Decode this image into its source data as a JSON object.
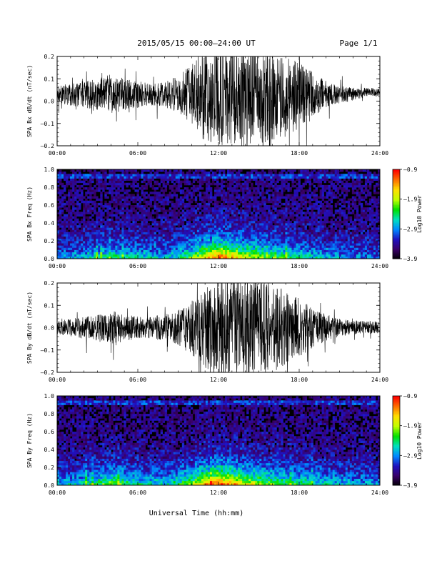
{
  "header": {
    "title": "2015/05/15  00:00–24:00 UT",
    "page": "Page 1/1"
  },
  "footer": {
    "xlabel": "Universal Time (hh:mm)"
  },
  "colors": {
    "trace": "#000000",
    "background": "#ffffff",
    "colormap": [
      "#000000",
      "#3a0068",
      "#2010c0",
      "#0088ff",
      "#00e0c0",
      "#00e000",
      "#c0ff00",
      "#ffe000",
      "#ff7000",
      "#ff0000"
    ]
  },
  "chart_data": [
    {
      "type": "line",
      "ylabel": "SPA Bx dB/dt (nT/sec)",
      "ylim": [
        -0.2,
        0.2
      ],
      "yticks": [
        "0.2",
        "0.1",
        "0.0",
        "–0.1",
        "–0.2"
      ],
      "xticks": [
        "00:00",
        "06:00",
        "12:00",
        "18:00",
        "24:00"
      ],
      "xlim_hours": [
        0,
        24
      ],
      "series": [
        {
          "hours": [
            0,
            1,
            2,
            3,
            4,
            5,
            6,
            7,
            8,
            9,
            10,
            11,
            12,
            13,
            14,
            15,
            16,
            17,
            18,
            19,
            20,
            21,
            22,
            23,
            24
          ],
          "offset": [
            0.03,
            0.03,
            0.03,
            0.03,
            0.03,
            0.03,
            0.03,
            0.03,
            0.03,
            0.03,
            0.03,
            0.02,
            0.02,
            0.02,
            0.02,
            0.02,
            0.02,
            0.02,
            0.03,
            0.03,
            0.03,
            0.03,
            0.03,
            0.04,
            0.04
          ],
          "amplitude": [
            0.04,
            0.05,
            0.06,
            0.07,
            0.09,
            0.07,
            0.06,
            0.05,
            0.06,
            0.08,
            0.14,
            0.2,
            0.22,
            0.22,
            0.22,
            0.21,
            0.2,
            0.18,
            0.15,
            0.1,
            0.06,
            0.04,
            0.03,
            0.02,
            0.02
          ]
        }
      ]
    },
    {
      "type": "heatmap",
      "ylabel": "SPA Bx Freq (Hz)",
      "ylim": [
        0.0,
        1.0
      ],
      "yticks": [
        "1.0",
        "0.8",
        "0.6",
        "0.4",
        "0.2",
        "0.0"
      ],
      "xticks": [
        "00:00",
        "06:00",
        "12:00",
        "18:00",
        "24:00"
      ],
      "xlim_hours": [
        0,
        24
      ],
      "colorbar": {
        "label": "Log10 Power",
        "range": [
          -3.9,
          -0.9
        ],
        "ticks": [
          "–0.9",
          "–1.9",
          "–2.9",
          "–3.9"
        ]
      },
      "activity_hours": [
        0,
        2,
        4,
        6,
        8,
        10,
        11,
        12,
        13,
        14,
        16,
        18,
        20,
        22,
        24
      ],
      "activity_level": [
        0.25,
        0.3,
        0.45,
        0.35,
        0.3,
        0.5,
        0.75,
        0.9,
        0.8,
        0.65,
        0.5,
        0.4,
        0.3,
        0.25,
        0.2
      ]
    },
    {
      "type": "line",
      "ylabel": "SPA By dB/dt (nT/sec)",
      "ylim": [
        -0.2,
        0.2
      ],
      "yticks": [
        "0.2",
        "0.1",
        "0.0",
        "–0.1",
        "–0.2"
      ],
      "xticks": [
        "00:00",
        "06:00",
        "12:00",
        "18:00",
        "24:00"
      ],
      "xlim_hours": [
        0,
        24
      ],
      "series": [
        {
          "hours": [
            0,
            1,
            2,
            3,
            4,
            5,
            6,
            7,
            8,
            9,
            10,
            11,
            12,
            13,
            14,
            15,
            16,
            17,
            18,
            19,
            20,
            21,
            22,
            23,
            24
          ],
          "offset": [
            0.0,
            0.0,
            0.0,
            0.0,
            0.0,
            0.0,
            0.0,
            0.0,
            0.0,
            0.0,
            0.0,
            0.0,
            0.0,
            0.0,
            0.0,
            0.0,
            0.0,
            0.0,
            0.0,
            0.0,
            0.0,
            0.0,
            0.0,
            0.0,
            0.0
          ],
          "amplitude": [
            0.03,
            0.04,
            0.05,
            0.06,
            0.08,
            0.06,
            0.05,
            0.05,
            0.06,
            0.08,
            0.12,
            0.18,
            0.22,
            0.22,
            0.22,
            0.21,
            0.2,
            0.17,
            0.13,
            0.09,
            0.06,
            0.04,
            0.03,
            0.03,
            0.03
          ]
        }
      ]
    },
    {
      "type": "heatmap",
      "ylabel": "SPA By Freq (Hz)",
      "ylim": [
        0.0,
        1.0
      ],
      "yticks": [
        "1.0",
        "0.8",
        "0.6",
        "0.4",
        "0.2",
        "0.0"
      ],
      "xticks": [
        "00:00",
        "06:00",
        "12:00",
        "18:00",
        "24:00"
      ],
      "xlim_hours": [
        0,
        24
      ],
      "colorbar": {
        "label": "Log10 Power",
        "range": [
          -3.9,
          -0.9
        ],
        "ticks": [
          "–0.9",
          "–1.9",
          "–2.9",
          "–3.9"
        ]
      },
      "activity_hours": [
        0,
        2,
        4,
        6,
        8,
        10,
        11,
        12,
        13,
        14,
        16,
        18,
        20,
        22,
        24
      ],
      "activity_level": [
        0.3,
        0.35,
        0.55,
        0.4,
        0.35,
        0.55,
        0.8,
        0.95,
        0.85,
        0.7,
        0.55,
        0.45,
        0.35,
        0.3,
        0.25
      ]
    }
  ]
}
